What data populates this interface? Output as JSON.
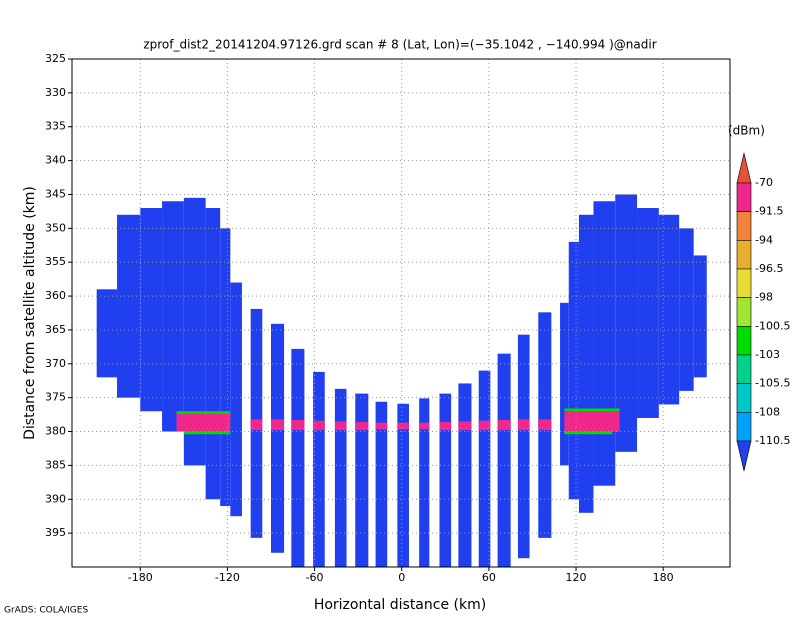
{
  "chart_data": {
    "type": "field",
    "title": "zprof_dist2_20141204.97126.grd  scan # 8  (Lat, Lon)=(−35.1042 , −140.994 )@nadir",
    "x_label": "Horizontal distance (km)",
    "y_label": "Distance from satellite altitude (km)",
    "credit": "GrADS: COLA/IGES",
    "colorbar_unit": "(dBm)",
    "xlim": [
      -227,
      226
    ],
    "xticks": [
      -180,
      -120,
      -60,
      0,
      60,
      120,
      180
    ],
    "ylim": [
      325,
      400
    ],
    "y_reversed": true,
    "yticks": [
      325,
      330,
      335,
      340,
      345,
      350,
      355,
      360,
      365,
      370,
      375,
      380,
      385,
      390,
      395
    ],
    "grid": true,
    "levels": [
      -70,
      -91.5,
      -94,
      -96.5,
      -98,
      -100.5,
      -103,
      -105.5,
      -108,
      -110.5
    ],
    "colors": [
      "#e8503c",
      "#f0288c",
      "#f0823c",
      "#e6af2d",
      "#e6dc32",
      "#a0e632",
      "#00dc00",
      "#00d28c",
      "#00c8c8",
      "#00a0ff",
      "#2040f0"
    ],
    "cells": [
      {
        "x": [
          -210,
          -196
        ],
        "alt": [
          359,
          372
        ],
        "value": -112
      },
      {
        "x": [
          -196,
          -180
        ],
        "alt": [
          348,
          375
        ],
        "value": -112
      },
      {
        "x": [
          -180,
          -165
        ],
        "alt": [
          347,
          377
        ],
        "value": -112
      },
      {
        "x": [
          -165,
          -150
        ],
        "alt": [
          346,
          380
        ],
        "value": -112
      },
      {
        "x": [
          -150,
          -135
        ],
        "alt": [
          345.5,
          385
        ],
        "value": -112
      },
      {
        "x": [
          -135,
          -125
        ],
        "alt": [
          347,
          390
        ],
        "value": -112
      },
      {
        "x": [
          -125,
          -118
        ],
        "alt": [
          350,
          391
        ],
        "value": -112
      },
      {
        "x": [
          -118,
          -110
        ],
        "alt": [
          358,
          392.5
        ],
        "value": -112
      },
      {
        "x": [
          109,
          115
        ],
        "alt": [
          361,
          385
        ],
        "value": -112
      },
      {
        "x": [
          115,
          122
        ],
        "alt": [
          352,
          390
        ],
        "value": -112
      },
      {
        "x": [
          122,
          132
        ],
        "alt": [
          348,
          392
        ],
        "value": -112
      },
      {
        "x": [
          132,
          147
        ],
        "alt": [
          346,
          388
        ],
        "value": -112
      },
      {
        "x": [
          147,
          162
        ],
        "alt": [
          345,
          383
        ],
        "value": -112
      },
      {
        "x": [
          162,
          177
        ],
        "alt": [
          347,
          378
        ],
        "value": -112
      },
      {
        "x": [
          177,
          191
        ],
        "alt": [
          348,
          376
        ],
        "value": -112
      },
      {
        "x": [
          191,
          201
        ],
        "alt": [
          350,
          374
        ],
        "value": -112
      },
      {
        "x": [
          201,
          210
        ],
        "alt": [
          354,
          372
        ],
        "value": -112
      },
      {
        "x": [
          -104,
          -96
        ],
        "alt": [
          361.9,
          395.7
        ],
        "value": -112
      },
      {
        "x": [
          -90,
          -81
        ],
        "alt": [
          364.1,
          397.9
        ],
        "value": -112
      },
      {
        "x": [
          -76,
          -67
        ],
        "alt": [
          367.8,
          400
        ],
        "value": -112
      },
      {
        "x": [
          -61,
          -53
        ],
        "alt": [
          371.2,
          400
        ],
        "value": -112
      },
      {
        "x": [
          -46,
          -38
        ],
        "alt": [
          373.7,
          400
        ],
        "value": -112
      },
      {
        "x": [
          -32,
          -23
        ],
        "alt": [
          374.4,
          400
        ],
        "value": -112
      },
      {
        "x": [
          -18,
          -10
        ],
        "alt": [
          375.6,
          400
        ],
        "value": -112
      },
      {
        "x": [
          -3,
          5
        ],
        "alt": [
          375.9,
          400
        ],
        "value": -112
      },
      {
        "x": [
          12,
          19
        ],
        "alt": [
          375.1,
          400
        ],
        "value": -112
      },
      {
        "x": [
          26,
          34
        ],
        "alt": [
          374.4,
          400
        ],
        "value": -112
      },
      {
        "x": [
          39,
          48
        ],
        "alt": [
          372.9,
          400
        ],
        "value": -112
      },
      {
        "x": [
          53,
          61
        ],
        "alt": [
          371,
          400
        ],
        "value": -112
      },
      {
        "x": [
          66,
          75
        ],
        "alt": [
          368.5,
          400
        ],
        "value": -112
      },
      {
        "x": [
          80,
          88
        ],
        "alt": [
          365.7,
          398.7
        ],
        "value": -112
      },
      {
        "x": [
          94,
          103
        ],
        "alt": [
          362.4,
          395.7
        ],
        "value": -112
      },
      {
        "x": [
          -155,
          -118
        ],
        "alt": [
          377,
          377.4
        ],
        "value": -102
      },
      {
        "x": [
          -155,
          -118
        ],
        "alt": [
          377.4,
          380
        ],
        "value": -85
      },
      {
        "x": [
          -150,
          -118
        ],
        "alt": [
          380,
          380.4
        ],
        "value": -102
      },
      {
        "x": [
          112,
          150
        ],
        "alt": [
          376.6,
          377
        ],
        "value": -102
      },
      {
        "x": [
          112,
          150
        ],
        "alt": [
          377,
          380
        ],
        "value": -85
      },
      {
        "x": [
          112,
          145
        ],
        "alt": [
          380,
          380.4
        ],
        "value": -102
      },
      {
        "x": [
          -104,
          -96
        ],
        "alt": [
          378.2,
          379.8
        ],
        "value": -85
      },
      {
        "x": [
          -90,
          -81
        ],
        "alt": [
          378.2,
          379.8
        ],
        "value": -85
      },
      {
        "x": [
          -76,
          -67
        ],
        "alt": [
          378.3,
          379.8
        ],
        "value": -85
      },
      {
        "x": [
          -61,
          -53
        ],
        "alt": [
          378.4,
          379.8
        ],
        "value": -85
      },
      {
        "x": [
          -46,
          -38
        ],
        "alt": [
          378.5,
          379.8
        ],
        "value": -85
      },
      {
        "x": [
          -32,
          -23
        ],
        "alt": [
          378.6,
          379.8
        ],
        "value": -85
      },
      {
        "x": [
          -18,
          -10
        ],
        "alt": [
          378.7,
          379.7
        ],
        "value": -85
      },
      {
        "x": [
          -3,
          5
        ],
        "alt": [
          378.7,
          379.7
        ],
        "value": -85
      },
      {
        "x": [
          12,
          19
        ],
        "alt": [
          378.7,
          379.7
        ],
        "value": -85
      },
      {
        "x": [
          26,
          34
        ],
        "alt": [
          378.6,
          379.8
        ],
        "value": -85
      },
      {
        "x": [
          39,
          48
        ],
        "alt": [
          378.5,
          379.8
        ],
        "value": -85
      },
      {
        "x": [
          53,
          61
        ],
        "alt": [
          378.4,
          379.8
        ],
        "value": -85
      },
      {
        "x": [
          66,
          75
        ],
        "alt": [
          378.3,
          379.8
        ],
        "value": -85
      },
      {
        "x": [
          80,
          88
        ],
        "alt": [
          378.2,
          379.8
        ],
        "value": -85
      },
      {
        "x": [
          94,
          103
        ],
        "alt": [
          378.2,
          379.8
        ],
        "value": -85
      }
    ]
  }
}
